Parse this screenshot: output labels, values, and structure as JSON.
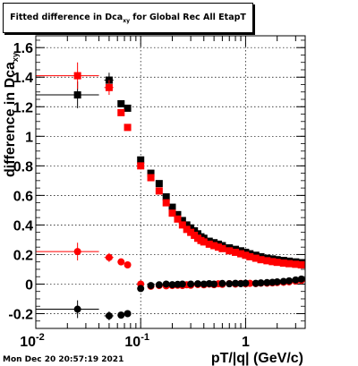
{
  "title": {
    "prefix": "Fitted difference in Dca",
    "subscript": "xy",
    "suffix": " for Global Rec All EtapT"
  },
  "timestamp": "Mon Dec 20 20:57:19 2021",
  "chart_data": {
    "type": "scatter",
    "xlabel": "pT/|q| (GeV/c)",
    "ylabel": "difference in Dca",
    "ylabel_subscript": "xy",
    "xscale": "log",
    "xlim": [
      0.01,
      3.7
    ],
    "ylim": [
      -0.3,
      1.68
    ],
    "grid": true,
    "x_ticks": [
      {
        "value": 0.01,
        "base": "10",
        "exp": "-2"
      },
      {
        "value": 0.1,
        "base": "10",
        "exp": "-1"
      },
      {
        "value": 1,
        "base": "1",
        "exp": ""
      }
    ],
    "y_ticks": [
      "-0.2",
      "0",
      "0.2",
      "0.4",
      "0.6",
      "0.8",
      "1",
      "1.2",
      "1.4",
      "1.6"
    ],
    "series": [
      {
        "color": "#000000",
        "marker": "square",
        "points": [
          {
            "x": 0.025,
            "y": 1.28,
            "xlo": 0.01,
            "xhi": 0.04,
            "yerr": 0.09
          },
          {
            "x": 0.05,
            "y": 1.38,
            "xlo": 0.045,
            "xhi": 0.055,
            "yerr": 0.05
          },
          {
            "x": 0.065,
            "y": 1.22,
            "yerr": 0.02
          },
          {
            "x": 0.075,
            "y": 1.19,
            "yerr": 0.02
          },
          {
            "x": 0.1,
            "y": 0.84,
            "yerr": 0.015
          },
          {
            "x": 0.125,
            "y": 0.75,
            "yerr": 0.015
          },
          {
            "x": 0.15,
            "y": 0.68,
            "yerr": 0.015
          },
          {
            "x": 0.175,
            "y": 0.59
          },
          {
            "x": 0.2,
            "y": 0.52
          },
          {
            "x": 0.225,
            "y": 0.47
          },
          {
            "x": 0.25,
            "y": 0.43
          },
          {
            "x": 0.275,
            "y": 0.4
          },
          {
            "x": 0.3,
            "y": 0.38
          },
          {
            "x": 0.325,
            "y": 0.36
          },
          {
            "x": 0.35,
            "y": 0.34
          },
          {
            "x": 0.375,
            "y": 0.32
          },
          {
            "x": 0.4,
            "y": 0.31
          },
          {
            "x": 0.45,
            "y": 0.29
          },
          {
            "x": 0.5,
            "y": 0.28
          },
          {
            "x": 0.55,
            "y": 0.27
          },
          {
            "x": 0.6,
            "y": 0.26
          },
          {
            "x": 0.7,
            "y": 0.245
          },
          {
            "x": 0.8,
            "y": 0.235
          },
          {
            "x": 0.9,
            "y": 0.225
          },
          {
            "x": 1.0,
            "y": 0.215
          },
          {
            "x": 1.1,
            "y": 0.205
          },
          {
            "x": 1.25,
            "y": 0.195
          },
          {
            "x": 1.4,
            "y": 0.185
          },
          {
            "x": 1.6,
            "y": 0.175
          },
          {
            "x": 1.8,
            "y": 0.17
          },
          {
            "x": 2.0,
            "y": 0.165
          },
          {
            "x": 2.3,
            "y": 0.16
          },
          {
            "x": 2.6,
            "y": 0.155
          },
          {
            "x": 3.0,
            "y": 0.15
          },
          {
            "x": 3.4,
            "y": 0.145
          }
        ]
      },
      {
        "color": "#ff0000",
        "marker": "square",
        "points": [
          {
            "x": 0.025,
            "y": 1.41,
            "xlo": 0.01,
            "xhi": 0.04,
            "yerr": 0.09
          },
          {
            "x": 0.05,
            "y": 1.33,
            "xlo": 0.045,
            "xhi": 0.055,
            "yerr": 0.05
          },
          {
            "x": 0.065,
            "y": 1.16,
            "yerr": 0.02
          },
          {
            "x": 0.075,
            "y": 1.06,
            "yerr": 0.02
          },
          {
            "x": 0.1,
            "y": 0.8,
            "yerr": 0.015
          },
          {
            "x": 0.125,
            "y": 0.72,
            "yerr": 0.015
          },
          {
            "x": 0.15,
            "y": 0.63,
            "yerr": 0.015
          },
          {
            "x": 0.175,
            "y": 0.55
          },
          {
            "x": 0.2,
            "y": 0.48
          },
          {
            "x": 0.225,
            "y": 0.44
          },
          {
            "x": 0.25,
            "y": 0.4
          },
          {
            "x": 0.275,
            "y": 0.37
          },
          {
            "x": 0.3,
            "y": 0.35
          },
          {
            "x": 0.325,
            "y": 0.33
          },
          {
            "x": 0.35,
            "y": 0.31
          },
          {
            "x": 0.375,
            "y": 0.295
          },
          {
            "x": 0.4,
            "y": 0.285
          },
          {
            "x": 0.45,
            "y": 0.27
          },
          {
            "x": 0.5,
            "y": 0.26
          },
          {
            "x": 0.55,
            "y": 0.25
          },
          {
            "x": 0.6,
            "y": 0.24
          },
          {
            "x": 0.7,
            "y": 0.225
          },
          {
            "x": 0.8,
            "y": 0.215
          },
          {
            "x": 0.9,
            "y": 0.205
          },
          {
            "x": 1.0,
            "y": 0.195
          },
          {
            "x": 1.1,
            "y": 0.185
          },
          {
            "x": 1.25,
            "y": 0.175
          },
          {
            "x": 1.4,
            "y": 0.165
          },
          {
            "x": 1.6,
            "y": 0.158
          },
          {
            "x": 1.8,
            "y": 0.152
          },
          {
            "x": 2.0,
            "y": 0.147
          },
          {
            "x": 2.3,
            "y": 0.142
          },
          {
            "x": 2.6,
            "y": 0.138
          },
          {
            "x": 3.0,
            "y": 0.134
          },
          {
            "x": 3.4,
            "y": 0.13
          }
        ]
      },
      {
        "color": "#ff0000",
        "marker": "circle",
        "points": [
          {
            "x": 0.025,
            "y": 0.22,
            "xlo": 0.01,
            "xhi": 0.04,
            "yerr": 0.06
          },
          {
            "x": 0.05,
            "y": 0.18,
            "xlo": 0.045,
            "xhi": 0.055,
            "yerr": 0.03
          },
          {
            "x": 0.065,
            "y": 0.15,
            "yerr": 0.02
          },
          {
            "x": 0.075,
            "y": 0.13,
            "yerr": 0.02
          },
          {
            "x": 0.1,
            "y": 0.0
          },
          {
            "x": 0.125,
            "y": -0.015
          },
          {
            "x": 0.15,
            "y": -0.01
          },
          {
            "x": 0.175,
            "y": -0.012
          },
          {
            "x": 0.2,
            "y": -0.01
          },
          {
            "x": 0.225,
            "y": -0.008
          },
          {
            "x": 0.25,
            "y": -0.01
          },
          {
            "x": 0.275,
            "y": -0.005
          },
          {
            "x": 0.3,
            "y": -0.008
          },
          {
            "x": 0.35,
            "y": -0.003
          },
          {
            "x": 0.4,
            "y": -0.005
          },
          {
            "x": 0.45,
            "y": 0.0
          },
          {
            "x": 0.5,
            "y": -0.004
          },
          {
            "x": 0.55,
            "y": 0.002
          },
          {
            "x": 0.6,
            "y": -0.002
          },
          {
            "x": 0.7,
            "y": 0.003
          },
          {
            "x": 0.8,
            "y": 0.0
          },
          {
            "x": 0.9,
            "y": 0.004
          },
          {
            "x": 1.0,
            "y": 0.002
          },
          {
            "x": 1.1,
            "y": 0.005
          },
          {
            "x": 1.25,
            "y": 0.003
          },
          {
            "x": 1.4,
            "y": 0.006
          },
          {
            "x": 1.6,
            "y": 0.006
          },
          {
            "x": 1.8,
            "y": 0.008
          },
          {
            "x": 2.0,
            "y": 0.01
          },
          {
            "x": 2.3,
            "y": 0.012
          },
          {
            "x": 2.6,
            "y": 0.015
          },
          {
            "x": 3.0,
            "y": 0.02
          },
          {
            "x": 3.4,
            "y": 0.025
          }
        ]
      },
      {
        "color": "#000000",
        "marker": "circle",
        "points": [
          {
            "x": 0.025,
            "y": -0.17,
            "xlo": 0.01,
            "xhi": 0.04,
            "yerr": 0.06
          },
          {
            "x": 0.05,
            "y": -0.215,
            "xlo": 0.045,
            "xhi": 0.055,
            "yerr": 0.03
          },
          {
            "x": 0.065,
            "y": -0.21,
            "yerr": 0.02
          },
          {
            "x": 0.075,
            "y": -0.2,
            "yerr": 0.02
          },
          {
            "x": 0.1,
            "y": -0.03
          },
          {
            "x": 0.125,
            "y": -0.01
          },
          {
            "x": 0.15,
            "y": -0.005
          },
          {
            "x": 0.175,
            "y": 0.0
          },
          {
            "x": 0.2,
            "y": -0.004
          },
          {
            "x": 0.225,
            "y": -0.002
          },
          {
            "x": 0.25,
            "y": 0.0
          },
          {
            "x": 0.3,
            "y": 0.0
          },
          {
            "x": 0.35,
            "y": 0.002
          },
          {
            "x": 0.4,
            "y": 0.0
          },
          {
            "x": 0.45,
            "y": 0.003
          },
          {
            "x": 0.5,
            "y": 0.0
          },
          {
            "x": 0.6,
            "y": 0.004
          },
          {
            "x": 0.7,
            "y": 0.002
          },
          {
            "x": 0.8,
            "y": 0.005
          },
          {
            "x": 0.9,
            "y": 0.003
          },
          {
            "x": 1.0,
            "y": 0.006
          },
          {
            "x": 1.25,
            "y": 0.005
          },
          {
            "x": 1.4,
            "y": 0.008
          },
          {
            "x": 1.6,
            "y": 0.01
          },
          {
            "x": 1.8,
            "y": 0.012
          },
          {
            "x": 2.0,
            "y": 0.015
          },
          {
            "x": 2.3,
            "y": 0.018
          },
          {
            "x": 2.6,
            "y": 0.022
          },
          {
            "x": 3.0,
            "y": 0.028
          },
          {
            "x": 3.4,
            "y": 0.034
          }
        ]
      }
    ]
  }
}
